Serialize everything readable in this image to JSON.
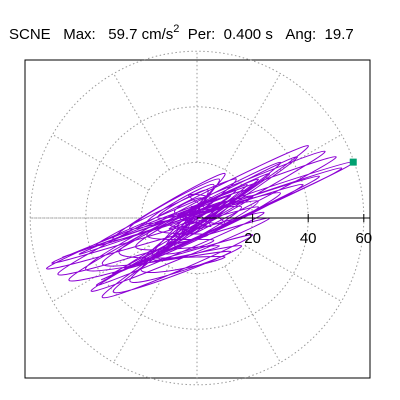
{
  "header": {
    "station": "SCNE",
    "max_label": "Max:",
    "max_value": "59.7",
    "max_unit": "cm/s",
    "max_unit_power": "2",
    "per_label": "Per:",
    "per_value": "0.400 s",
    "ang_label": "Ang:",
    "ang_value": "19.7"
  },
  "colors": {
    "trace": "#8c00d4",
    "peak_marker": "#00a070",
    "grid": "#999999",
    "axis": "#000000"
  },
  "chart_data": {
    "type": "scatter",
    "plot_kind": "polar particle-motion hodogram",
    "max_amplitude": 59.7,
    "max_angle_deg": 19.7,
    "period_s": 0.4,
    "radial_axis": {
      "ticks": [
        20,
        40,
        60
      ],
      "tick_labels": [
        "20",
        "40",
        "60"
      ],
      "rings": [
        20,
        40,
        60
      ],
      "spokes_deg": [
        0,
        30,
        60,
        90,
        120,
        150,
        180,
        210,
        240,
        270,
        300,
        330
      ]
    },
    "grid": true,
    "peak_point": {
      "x": 56.2,
      "y": 20.1
    },
    "trace": [
      [
        0,
        0
      ],
      [
        3,
        2
      ],
      [
        -2,
        4
      ],
      [
        5,
        -3
      ],
      [
        -6,
        1
      ],
      [
        8,
        3
      ],
      [
        -4,
        -6
      ],
      [
        2,
        7
      ],
      [
        -8,
        2
      ],
      [
        10,
        -2
      ],
      [
        -3,
        8
      ],
      [
        6,
        6
      ],
      [
        -10,
        -4
      ],
      [
        12,
        5
      ],
      [
        -6,
        -8
      ],
      [
        4,
        10
      ],
      [
        -14,
        0
      ],
      [
        16,
        4
      ],
      [
        -8,
        -10
      ],
      [
        6,
        12
      ],
      [
        -18,
        -2
      ],
      [
        22,
        6
      ],
      [
        -12,
        -12
      ],
      [
        8,
        14
      ],
      [
        -24,
        -4
      ],
      [
        30,
        9
      ],
      [
        -16,
        -14
      ],
      [
        10,
        16
      ],
      [
        -30,
        -8
      ],
      [
        38,
        12
      ],
      [
        -20,
        -16
      ],
      [
        14,
        14
      ],
      [
        -36,
        -10
      ],
      [
        44,
        15
      ],
      [
        -26,
        -18
      ],
      [
        18,
        10
      ],
      [
        -42,
        -13
      ],
      [
        52,
        18
      ],
      [
        -30,
        -20
      ],
      [
        20,
        8
      ],
      [
        -48,
        -14
      ],
      [
        56.2,
        20.1
      ],
      [
        -34,
        -22
      ],
      [
        22,
        4
      ],
      [
        -52,
        -16
      ],
      [
        50,
        22
      ],
      [
        -36,
        -24
      ],
      [
        24,
        2
      ],
      [
        -54,
        -18
      ],
      [
        46,
        24
      ],
      [
        -38,
        -26
      ],
      [
        26,
        0
      ],
      [
        -50,
        -20
      ],
      [
        40,
        26
      ],
      [
        -34,
        -28
      ],
      [
        20,
        -6
      ],
      [
        -46,
        -22
      ],
      [
        36,
        22
      ],
      [
        -30,
        -26
      ],
      [
        16,
        -10
      ],
      [
        -40,
        -18
      ],
      [
        30,
        20
      ],
      [
        -24,
        -22
      ],
      [
        12,
        -12
      ],
      [
        -34,
        -16
      ],
      [
        26,
        16
      ],
      [
        -20,
        -18
      ],
      [
        10,
        -14
      ],
      [
        -28,
        -12
      ],
      [
        22,
        14
      ],
      [
        -16,
        -14
      ],
      [
        8,
        -10
      ],
      [
        -22,
        -10
      ],
      [
        18,
        12
      ],
      [
        -12,
        -12
      ],
      [
        6,
        -8
      ],
      [
        -18,
        -6
      ],
      [
        14,
        10
      ],
      [
        -10,
        -8
      ],
      [
        4,
        -6
      ],
      [
        -14,
        -4
      ],
      [
        12,
        8
      ],
      [
        -8,
        -6
      ],
      [
        2,
        -4
      ],
      [
        -10,
        -2
      ],
      [
        10,
        6
      ],
      [
        -6,
        -4
      ],
      [
        1,
        -2
      ],
      [
        -6,
        0
      ],
      [
        6,
        4
      ],
      [
        -4,
        -2
      ],
      [
        0,
        -1
      ],
      [
        -3,
        1
      ],
      [
        3,
        2
      ],
      [
        -2,
        0
      ],
      [
        0,
        0
      ]
    ]
  }
}
